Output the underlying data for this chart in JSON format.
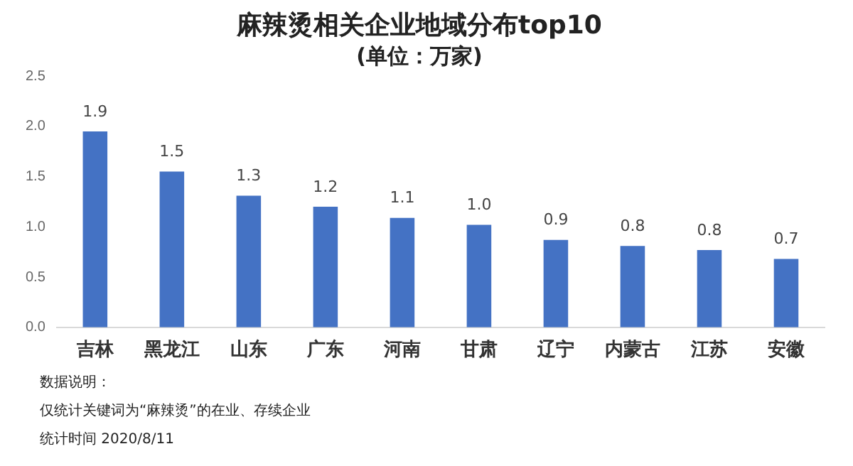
{
  "chart_data": {
    "type": "bar",
    "title": "麻辣烫相关企业地域分布top10",
    "subtitle": "(单位：万家)",
    "categories": [
      "吉林",
      "黑龙江",
      "山东",
      "广东",
      "河南",
      "甘肃",
      "辽宁",
      "内蒙古",
      "江苏",
      "安徽"
    ],
    "values": [
      1.95,
      1.55,
      1.31,
      1.2,
      1.09,
      1.02,
      0.87,
      0.81,
      0.77,
      0.68
    ],
    "value_labels": [
      "1.9",
      "1.5",
      "1.3",
      "1.2",
      "1.1",
      "1.0",
      "0.9",
      "0.8",
      "0.8",
      "0.7"
    ],
    "color": "#4472c4",
    "ylim": [
      0,
      2.5
    ],
    "yticks": [
      {
        "value": 0,
        "label": "0.0"
      },
      {
        "value": 0.5,
        "label": "0.5"
      },
      {
        "value": 1,
        "label": "1.0"
      },
      {
        "value": 1.5,
        "label": "1.5"
      },
      {
        "value": 2,
        "label": "2.0"
      },
      {
        "value": 2.5,
        "label": "2.5"
      }
    ],
    "grid": false,
    "legend": false,
    "annotations": [
      "数据说明：",
      "仅统计关键词为“麻辣烫”的在业、存续企业",
      "统计时间 2020/8/11"
    ]
  }
}
